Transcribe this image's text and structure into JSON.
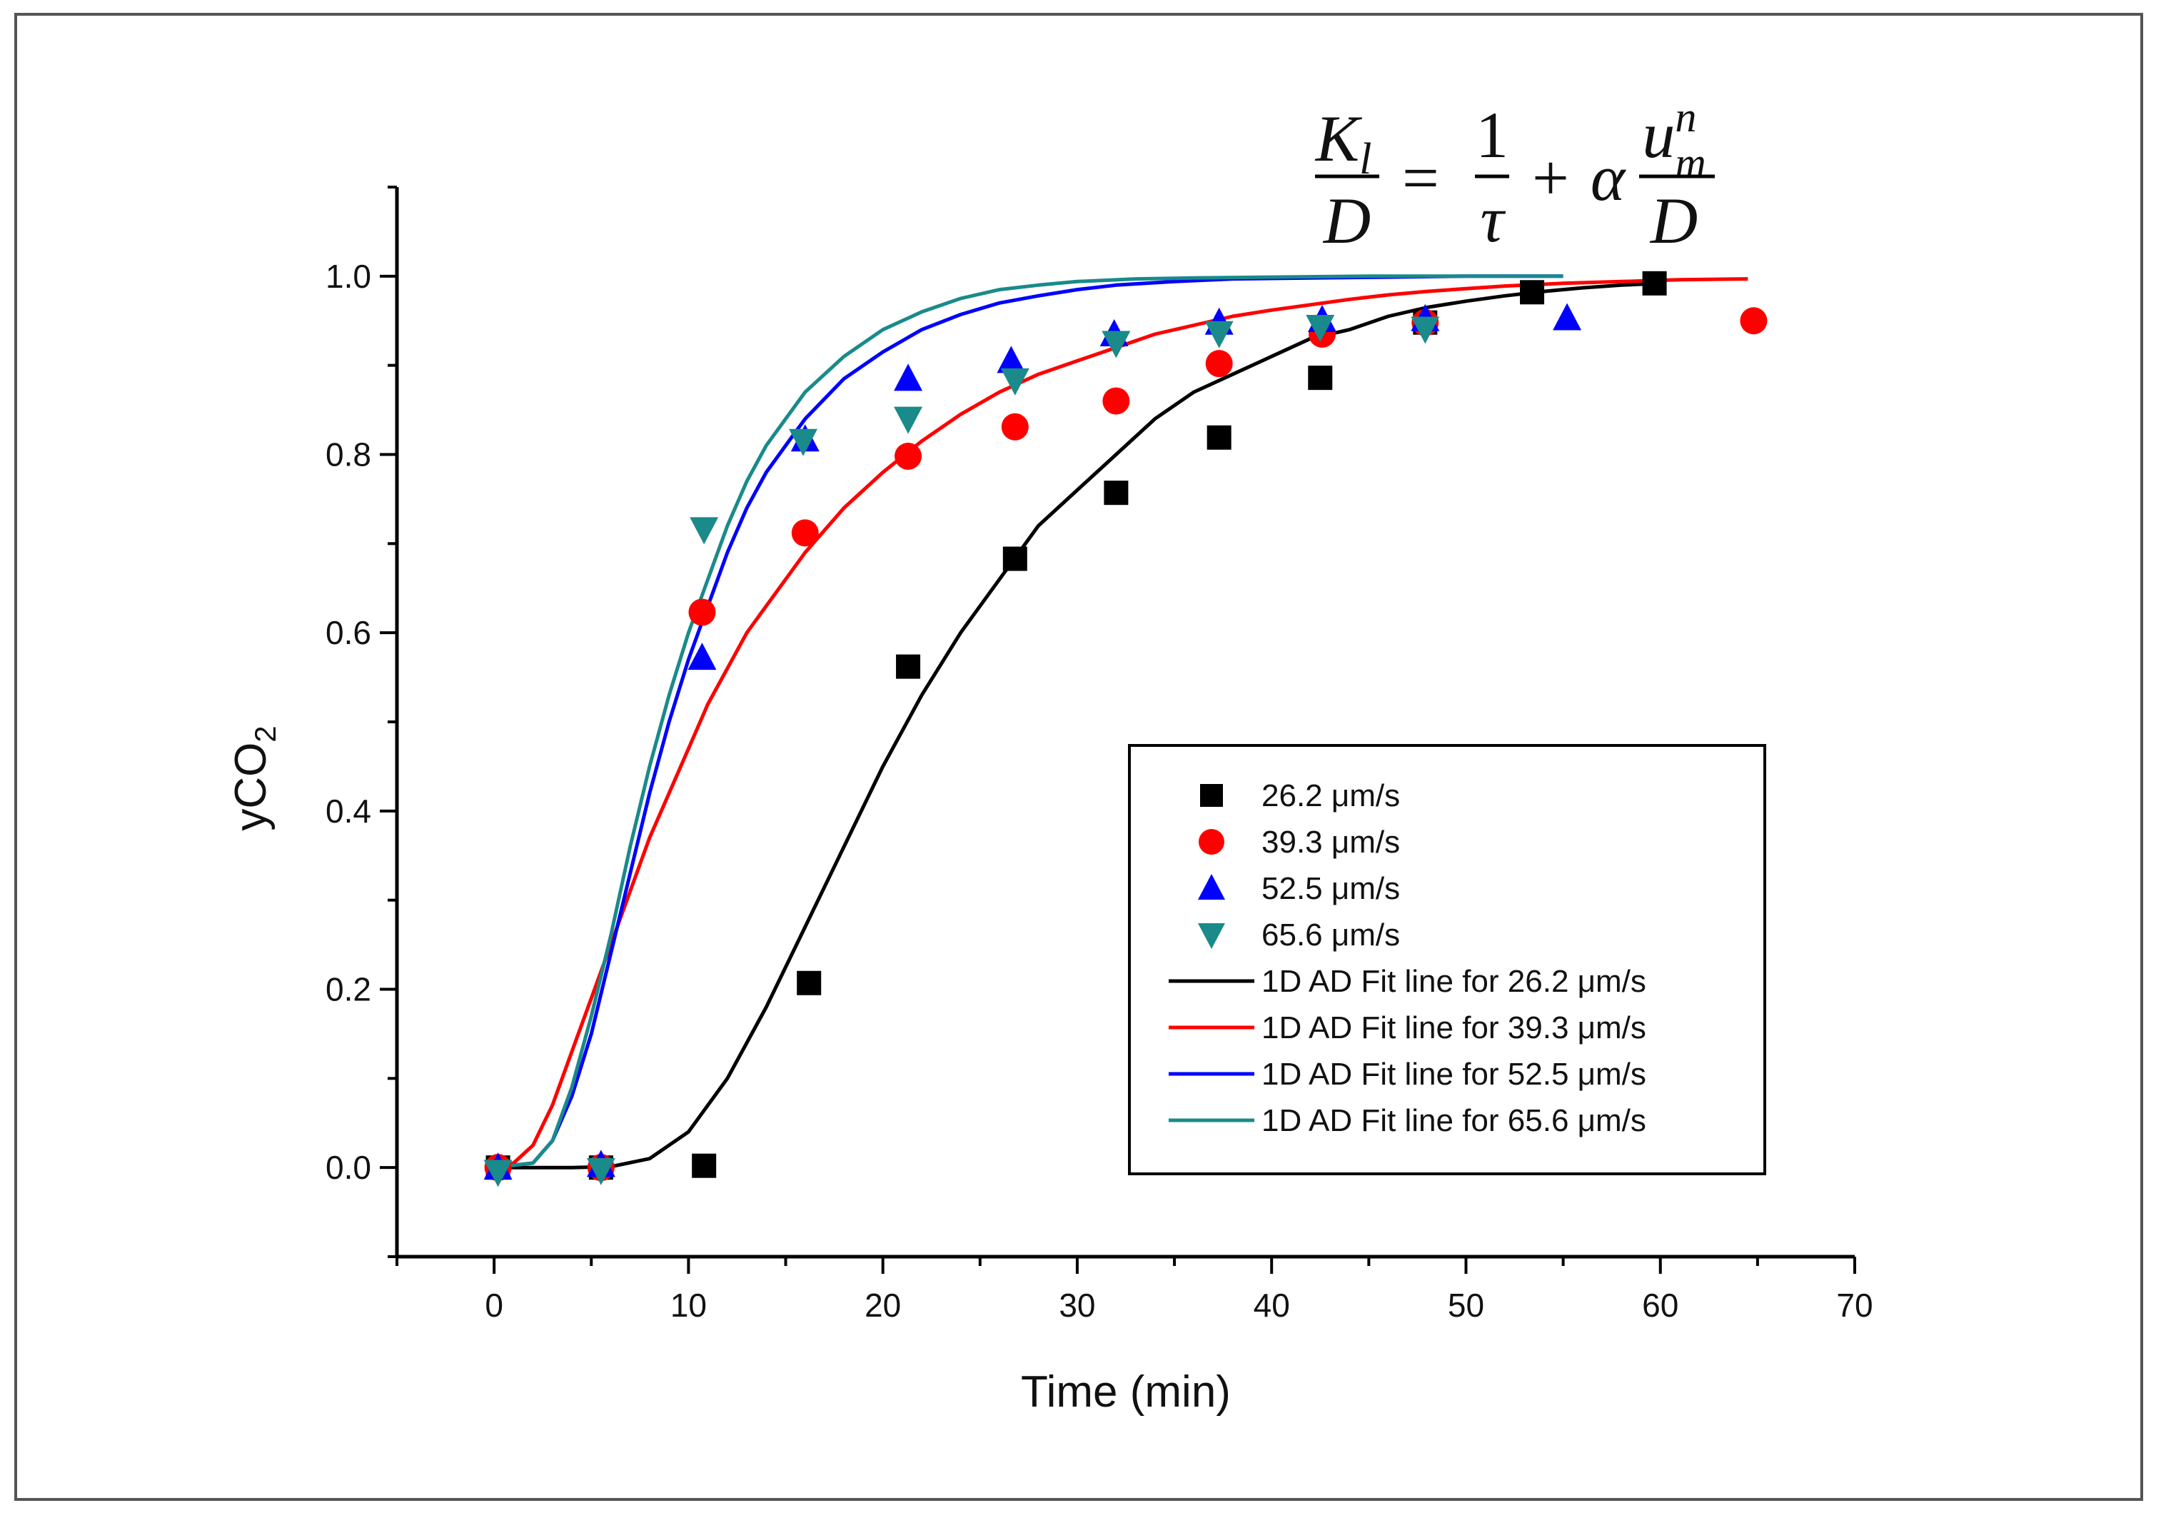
{
  "chart_data": {
    "type": "scatter",
    "title": "",
    "xlabel": "Time (min)",
    "ylabel_main": "yCO",
    "ylabel_sub": "2",
    "xlim": [
      -5,
      70
    ],
    "ylim": [
      -0.1,
      1.1
    ],
    "xticks": [
      0,
      10,
      20,
      30,
      40,
      50,
      60,
      70
    ],
    "xtick_labels": [
      "0",
      "10",
      "20",
      "30",
      "40",
      "50",
      "60",
      "70"
    ],
    "yticks": [
      0.0,
      0.2,
      0.4,
      0.6,
      0.8,
      1.0
    ],
    "ytick_labels": [
      "0.0",
      "0.2",
      "0.4",
      "0.6",
      "0.8",
      "1.0"
    ],
    "series": [
      {
        "name": "26.2 μm/s",
        "marker": "square",
        "color": "#000000",
        "x": [
          0.2,
          5.5,
          10.8,
          16.2,
          21.3,
          26.8,
          32.0,
          37.3,
          42.5,
          47.9,
          53.4,
          59.7
        ],
        "y": [
          0.0,
          0.0,
          0.002,
          0.207,
          0.562,
          0.683,
          0.757,
          0.819,
          0.886,
          0.948,
          0.982,
          0.992
        ]
      },
      {
        "name": "39.3 μm/s",
        "marker": "circle",
        "color": "#ff0000",
        "x": [
          0.2,
          5.5,
          10.7,
          16.0,
          21.3,
          26.8,
          32.0,
          37.3,
          42.6,
          47.9,
          64.8
        ],
        "y": [
          0.0,
          0.0,
          0.623,
          0.712,
          0.798,
          0.831,
          0.86,
          0.902,
          0.935,
          0.948,
          0.95
        ]
      },
      {
        "name": "52.5 μm/s",
        "marker": "triangle-up",
        "color": "#0000ff",
        "x": [
          0.2,
          5.5,
          10.7,
          16.0,
          21.3,
          26.6,
          31.9,
          37.3,
          42.6,
          47.9,
          55.2
        ],
        "y": [
          0.0,
          0.003,
          0.572,
          0.817,
          0.885,
          0.905,
          0.935,
          0.948,
          0.951,
          0.952,
          0.953
        ]
      },
      {
        "name": "65.6 μm/s",
        "marker": "triangle-down",
        "color": "#1a8a8a",
        "x": [
          0.2,
          5.5,
          10.8,
          15.9,
          21.3,
          26.8,
          32.0,
          37.3,
          42.5,
          47.9
        ],
        "y": [
          -0.005,
          -0.003,
          0.716,
          0.815,
          0.84,
          0.883,
          0.925,
          0.936,
          0.943,
          0.941
        ]
      }
    ],
    "fit_lines": [
      {
        "name": "1D AD Fit line for 26.2 μm/s",
        "color": "#000000",
        "x": [
          0,
          2,
          4,
          6,
          8,
          10,
          12,
          14,
          16,
          18,
          20,
          22,
          24,
          26,
          28,
          30,
          32,
          34,
          36,
          38,
          40,
          42,
          44,
          46,
          48,
          50,
          52,
          54,
          56,
          58,
          60
        ],
        "y": [
          0,
          0,
          0,
          0.001,
          0.01,
          0.04,
          0.1,
          0.18,
          0.27,
          0.36,
          0.45,
          0.53,
          0.6,
          0.66,
          0.72,
          0.76,
          0.8,
          0.84,
          0.87,
          0.89,
          0.91,
          0.93,
          0.94,
          0.955,
          0.965,
          0.972,
          0.978,
          0.983,
          0.987,
          0.99,
          0.992
        ]
      },
      {
        "name": "1D AD Fit line for 39.3 μm/s",
        "color": "#ff0000",
        "x": [
          0,
          1,
          2,
          3,
          4,
          5,
          6,
          7,
          8,
          9,
          10,
          11,
          12,
          13,
          14,
          15,
          16,
          18,
          20,
          22,
          24,
          26,
          28,
          30,
          32,
          34,
          36,
          38,
          40,
          42,
          44,
          46,
          48,
          50,
          52,
          55,
          58,
          61,
          64.5
        ],
        "y": [
          0,
          0.005,
          0.025,
          0.07,
          0.13,
          0.19,
          0.25,
          0.31,
          0.37,
          0.42,
          0.47,
          0.52,
          0.56,
          0.6,
          0.63,
          0.66,
          0.69,
          0.74,
          0.78,
          0.815,
          0.845,
          0.87,
          0.89,
          0.905,
          0.92,
          0.935,
          0.945,
          0.955,
          0.962,
          0.968,
          0.974,
          0.979,
          0.983,
          0.986,
          0.989,
          0.992,
          0.994,
          0.996,
          0.997
        ]
      },
      {
        "name": "1D AD Fit line for 52.5 μm/s",
        "color": "#0000ff",
        "x": [
          0,
          2,
          3,
          4,
          5,
          6,
          7,
          8,
          9,
          10,
          11,
          12,
          13,
          14,
          15,
          16,
          18,
          20,
          22,
          24,
          26,
          28,
          30,
          32,
          35,
          38,
          42,
          46,
          50,
          55
        ],
        "y": [
          0,
          0.005,
          0.03,
          0.08,
          0.15,
          0.24,
          0.33,
          0.42,
          0.5,
          0.57,
          0.63,
          0.69,
          0.74,
          0.78,
          0.81,
          0.84,
          0.885,
          0.915,
          0.94,
          0.957,
          0.97,
          0.978,
          0.985,
          0.99,
          0.994,
          0.997,
          0.998,
          0.999,
          1.0,
          1.0
        ]
      },
      {
        "name": "1D AD Fit line for 65.6 μm/s",
        "color": "#1a8a8a",
        "x": [
          0,
          2,
          3,
          4,
          5,
          6,
          7,
          8,
          9,
          10,
          11,
          12,
          13,
          14,
          15,
          16,
          18,
          20,
          22,
          24,
          26,
          28,
          30,
          33,
          36,
          40,
          45,
          50,
          55
        ],
        "y": [
          0,
          0.005,
          0.03,
          0.09,
          0.17,
          0.26,
          0.36,
          0.45,
          0.53,
          0.6,
          0.66,
          0.72,
          0.77,
          0.81,
          0.84,
          0.87,
          0.91,
          0.94,
          0.96,
          0.975,
          0.985,
          0.99,
          0.994,
          0.997,
          0.998,
          0.999,
          1.0,
          1.0,
          1.0
        ]
      }
    ],
    "legend_position": "center-right",
    "equation": {
      "lhs_num": "K",
      "lhs_num_sub": "l",
      "lhs_den": "D",
      "equals": "=",
      "term1_num": "1",
      "term1_den": "τ",
      "plus": "+",
      "alpha": "α",
      "term2_num": "u",
      "term2_num_sup": "n",
      "term2_num_sub": "m",
      "term2_den": "D"
    }
  }
}
